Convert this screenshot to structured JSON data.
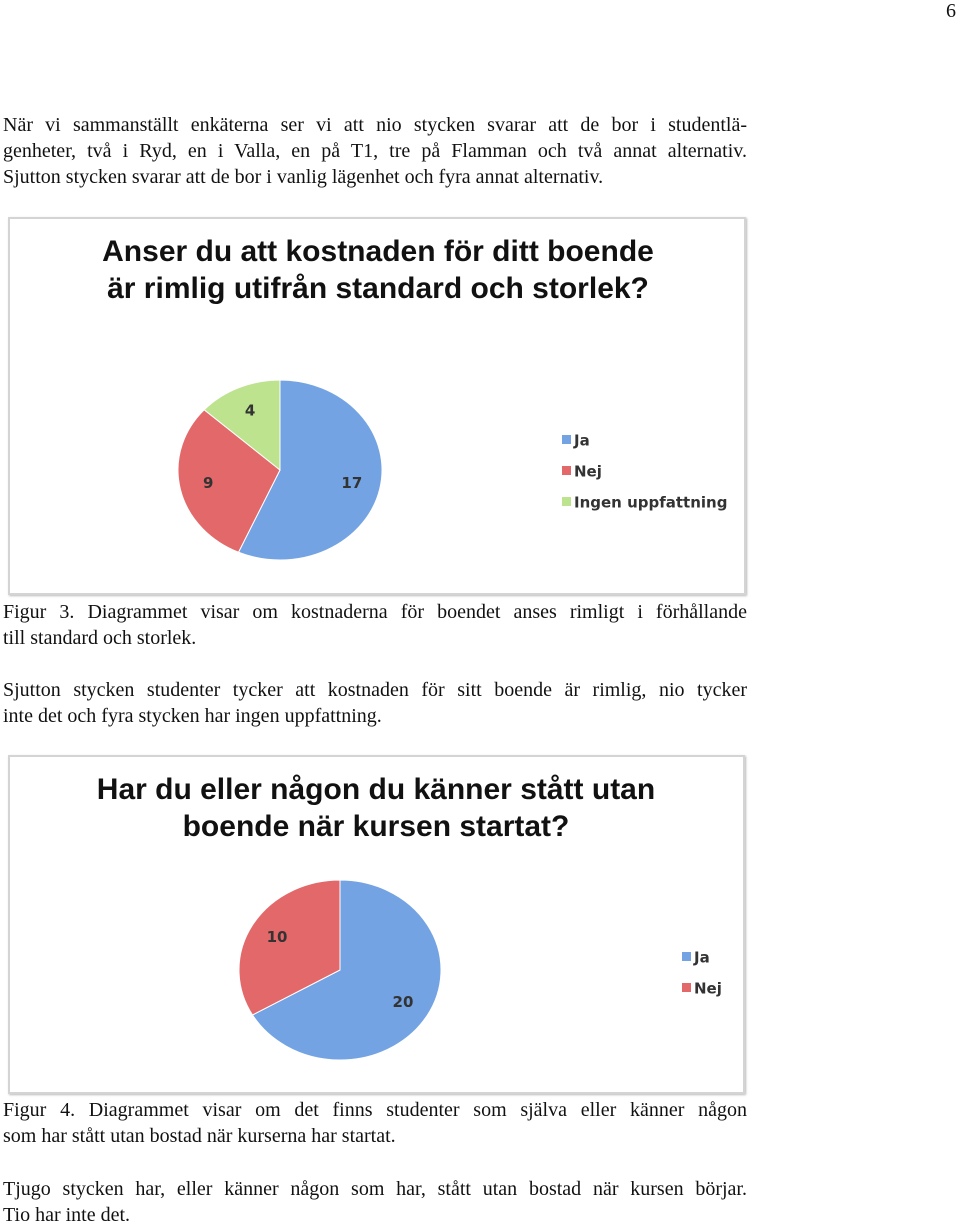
{
  "page_number": "6",
  "paragraph_1": [
    "När vi sammanställt enkäterna ser vi att nio stycken svarar att de bor i studentlä-",
    "genheter, två i Ryd, en i Valla, en på T1, tre på Flamman och två annat alternativ.",
    "Sjutton stycken svarar att de bor i vanlig lägenhet och fyra annat alternativ."
  ],
  "caption_1": [
    "Figur 3. Diagrammet visar om kostnaderna för boendet anses rimligt i förhållande",
    "till standard och storlek."
  ],
  "paragraph_2": [
    "Sjutton stycken studenter tycker att kostnaden för sitt boende är rimlig, nio tycker",
    "inte det och fyra stycken har ingen uppfattning."
  ],
  "caption_2": [
    "Figur 4. Diagrammet visar om det finns studenter som själva eller känner någon",
    "som har stått utan bostad när kurserna har startat."
  ],
  "paragraph_3": [
    "Tjugo stycken har, eller känner någon som har, stått utan bostad när kursen börjar.",
    "Tio har inte det."
  ],
  "chart_data": [
    {
      "type": "pie",
      "title": "Anser du att kostnaden för ditt boende är rimlig utifrån standard och storlek?",
      "categories": [
        "Ja",
        "Nej",
        "Ingen uppfattning"
      ],
      "values": [
        17,
        9,
        4
      ],
      "colors": [
        "#73a3e3",
        "#e3686a",
        "#bde38f"
      ]
    },
    {
      "type": "pie",
      "title": "Har du eller någon du känner stått utan boende när kursen startat?",
      "categories": [
        "Ja",
        "Nej"
      ],
      "values": [
        20,
        10
      ],
      "colors": [
        "#73a3e3",
        "#e3686a"
      ]
    }
  ]
}
